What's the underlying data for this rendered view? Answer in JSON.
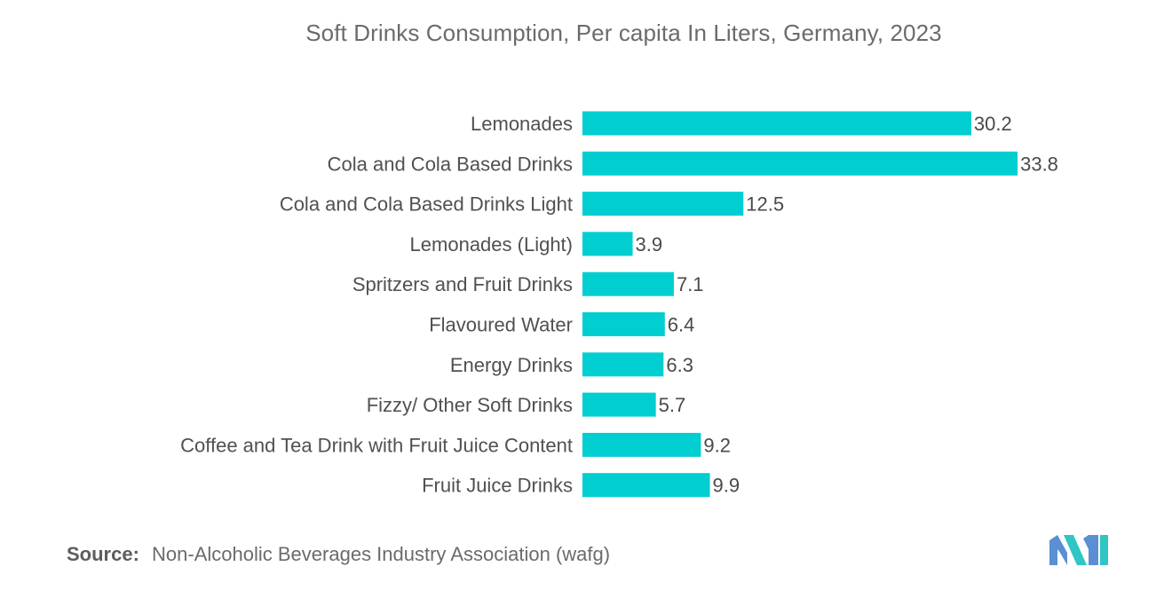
{
  "chart_data": {
    "type": "bar",
    "orientation": "horizontal",
    "title": "Soft Drinks Consumption, Per capita In Liters, Germany, 2023",
    "categories": [
      "Lemonades",
      "Cola and Cola Based Drinks",
      "Cola and Cola Based Drinks Light",
      "Lemonades (Light)",
      "Spritzers and Fruit Drinks",
      "Flavoured Water",
      "Energy Drinks",
      "Fizzy/ Other Soft Drinks",
      "Coffee and Tea Drink with Fruit Juice Content",
      "Fruit Juice Drinks"
    ],
    "values": [
      30.2,
      33.8,
      12.5,
      3.9,
      7.1,
      6.4,
      6.3,
      5.7,
      9.2,
      9.9
    ],
    "value_labels": [
      "30.2",
      "33.8",
      "12.5",
      "3.9",
      "7.1",
      "6.4",
      "6.3",
      "5.7",
      "9.2",
      "9.9"
    ],
    "xlabel": "",
    "ylabel": "",
    "grid": false,
    "legend": "none",
    "bar_color": "#00CED1"
  },
  "source": {
    "key": "Source:",
    "text": "Non-Alcoholic Beverages Industry Association (wafg)"
  },
  "logo": {
    "icon": "mordor-logo-icon",
    "colors": [
      "#5A8FD4",
      "#2FC6C4"
    ]
  }
}
